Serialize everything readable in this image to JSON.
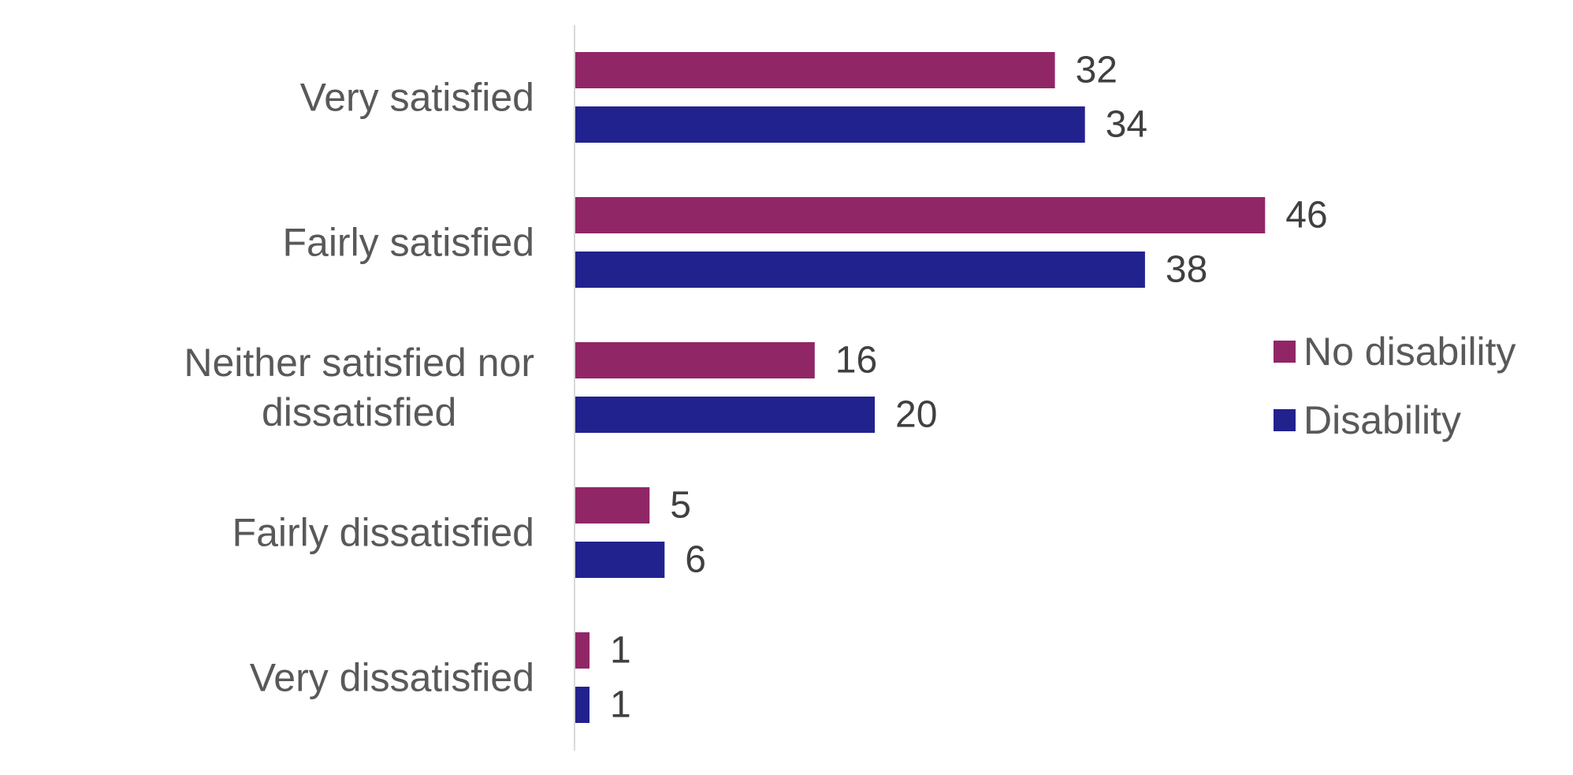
{
  "chart_data": {
    "type": "bar",
    "orientation": "horizontal",
    "title": "",
    "xlabel": "",
    "ylabel": "",
    "categories": [
      [
        "Very satisfied"
      ],
      [
        "Fairly satisfied"
      ],
      [
        "Neither satisfied nor",
        "dissatisfied"
      ],
      [
        "Fairly dissatisfied"
      ],
      [
        "Very dissatisfied"
      ]
    ],
    "series": [
      {
        "name": "No disability",
        "color": "#912667",
        "values": [
          32,
          46,
          16,
          5,
          1
        ]
      },
      {
        "name": "Disability",
        "color": "#22228f",
        "values": [
          34,
          38,
          20,
          6,
          1
        ]
      }
    ],
    "xlim": [
      0,
      46
    ],
    "grid": false,
    "legend": "right",
    "colors": {
      "axis": "#d9d9d9",
      "category_label": "#595959",
      "value_label": "#404040",
      "legend_text": "#595959"
    }
  }
}
